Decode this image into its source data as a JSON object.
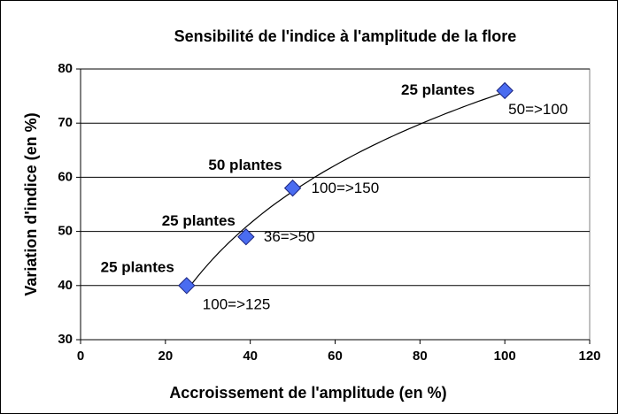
{
  "chart_data": {
    "type": "scatter",
    "title": "Sensibilité de l'indice à l'amplitude de la flore",
    "x_label": "Accroissement de l'amplitude (en %)",
    "y_label": "Variation d'indice (en %)",
    "x": [
      25,
      39,
      50,
      100
    ],
    "values": [
      40,
      49,
      58,
      76
    ],
    "point_labels": [
      "100=>125",
      "36=>50",
      "100=>150",
      "50=>100"
    ],
    "group_labels": [
      "25 plantes",
      "25 plantes",
      "50 plantes",
      "25 plantes"
    ],
    "color": "#4a6cf0",
    "trendline": "logarithmic",
    "xlim": [
      0,
      120
    ],
    "xticks": [
      0,
      20,
      40,
      60,
      80,
      100,
      120
    ],
    "ylim": [
      30,
      80
    ],
    "yticks": [
      30,
      40,
      50,
      60,
      70,
      80
    ],
    "grid": true
  }
}
